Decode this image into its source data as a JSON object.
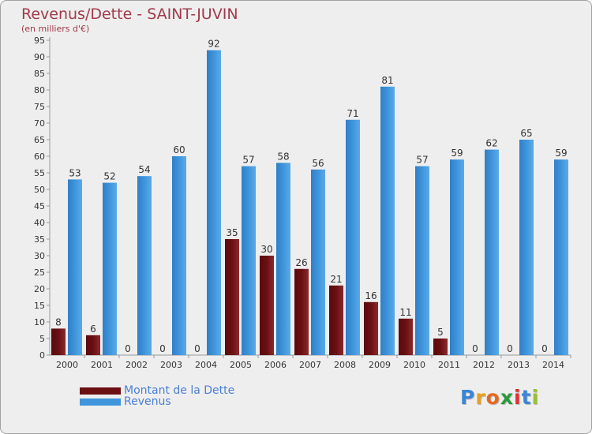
{
  "header": {
    "title": "Revenus/Dette - SAINT-JUVIN",
    "subtitle": "(en milliers d'€)"
  },
  "brand": {
    "letters": [
      "P",
      "r",
      "o",
      "x",
      "i",
      "t",
      "i"
    ],
    "colors": [
      "#3a86d6",
      "#e8a020",
      "#e46a1c",
      "#2a9a3a",
      "#e03030",
      "#3a86d6",
      "#9ac030"
    ]
  },
  "chart_data": {
    "type": "bar",
    "title": "Revenus/Dette - SAINT-JUVIN",
    "subtitle": "(en milliers d'€)",
    "categories": [
      "2000",
      "2001",
      "2002",
      "2003",
      "2004",
      "2005",
      "2006",
      "2007",
      "2008",
      "2009",
      "2010",
      "2011",
      "2012",
      "2013",
      "2014"
    ],
    "series": [
      {
        "name": "Montant de la Dette",
        "color": "#6b0f12",
        "values": [
          8,
          6,
          0,
          0,
          0,
          35,
          30,
          26,
          21,
          16,
          11,
          5,
          0,
          0,
          0
        ]
      },
      {
        "name": "Revenus",
        "color": "#3f95dc",
        "values": [
          53,
          52,
          54,
          60,
          92,
          57,
          58,
          56,
          71,
          81,
          57,
          59,
          62,
          65,
          59
        ]
      }
    ],
    "ylim": [
      0,
      95
    ],
    "yticks": [
      0,
      5,
      10,
      15,
      20,
      25,
      30,
      35,
      40,
      45,
      50,
      55,
      60,
      65,
      70,
      75,
      80,
      85,
      90,
      95
    ],
    "grid": false,
    "legend_position": "bottom-left"
  }
}
